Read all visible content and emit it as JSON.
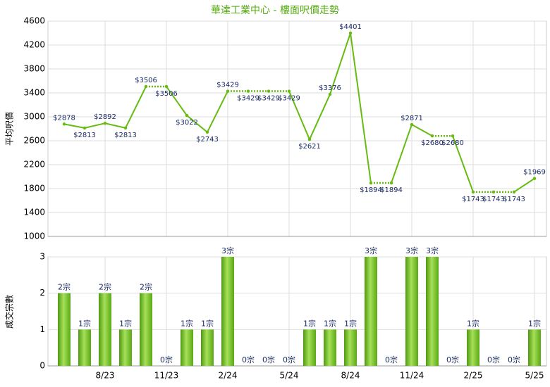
{
  "chart_data": [
    {
      "type": "line",
      "title": "華達工業中心 - 樓面呎價走勢",
      "y_label": "平均呎價",
      "categories": [
        null,
        null,
        "8/23",
        null,
        null,
        "11/23",
        null,
        null,
        "2/24",
        null,
        null,
        "5/24",
        null,
        null,
        "8/24",
        null,
        null,
        "11/24",
        null,
        null,
        "2/25",
        null,
        null,
        "5/25"
      ],
      "series": [
        {
          "name": "平均呎價",
          "color": "#66bb11",
          "values": [
            2878,
            2813,
            2892,
            2813,
            3506,
            3506,
            3022,
            2743,
            3429,
            3429,
            3429,
            3429,
            2621,
            3376,
            4401,
            1894,
            1894,
            2871,
            2680,
            2680,
            1743,
            1743,
            1743,
            1969
          ],
          "value_labels": [
            "$2878",
            "$2813",
            "$2892",
            "$2813",
            "$3506",
            "$3506",
            "$3022",
            "$2743",
            "$3429",
            "$3429",
            "$3429",
            "$3429",
            "$2621",
            "$3376",
            "$4401",
            "$1894",
            "$1894",
            "$2871",
            "$2680",
            "$2680",
            "$1743",
            "$1743",
            "$1743",
            "$1969"
          ]
        }
      ],
      "ylim": [
        1000,
        4600
      ],
      "yticks": [
        1000,
        1400,
        1800,
        2200,
        2600,
        3000,
        3400,
        3800,
        4200,
        4600
      ],
      "grid": true
    },
    {
      "type": "bar",
      "y_label": "成交宗數",
      "series": [
        {
          "name": "成交宗數",
          "color": "#77cc22",
          "values": [
            2,
            1,
            2,
            1,
            2,
            0,
            1,
            1,
            3,
            0,
            0,
            0,
            1,
            1,
            1,
            3,
            0,
            3,
            3,
            0,
            1,
            0,
            0,
            1
          ],
          "value_labels": [
            "2宗",
            "1宗",
            "2宗",
            "1宗",
            "2宗",
            "0宗",
            "1宗",
            "1宗",
            "3宗",
            "0宗",
            "0宗",
            "0宗",
            "1宗",
            "1宗",
            "1宗",
            "3宗",
            "0宗",
            "3宗",
            "3宗",
            "0宗",
            "1宗",
            "0宗",
            "0宗",
            "1宗"
          ]
        }
      ],
      "ylim": [
        0,
        3
      ],
      "yticks": [
        0,
        1,
        2,
        3
      ],
      "grid": true
    }
  ]
}
